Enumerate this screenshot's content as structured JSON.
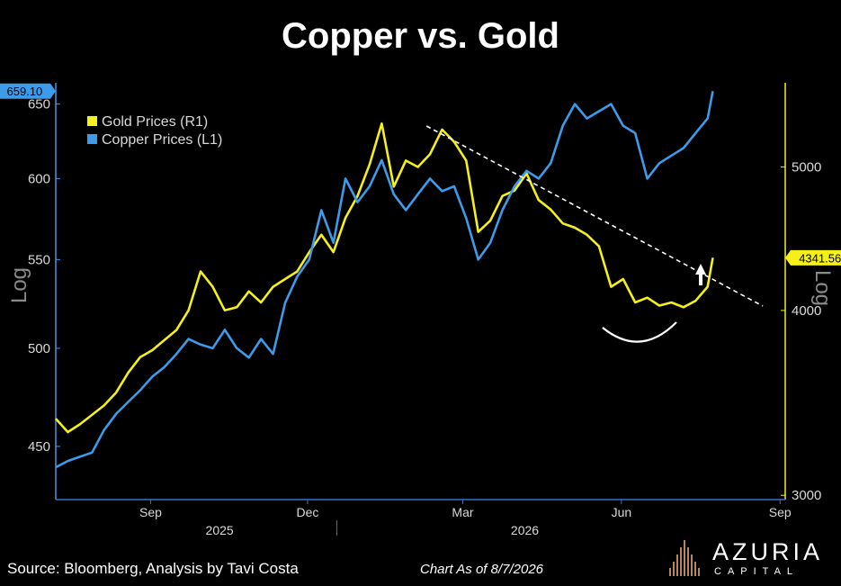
{
  "chart_data": {
    "type": "line",
    "title": "Copper vs. Gold",
    "axes": {
      "left": {
        "label": "Log",
        "scale": "log",
        "range": [
          425,
          665
        ],
        "ticks": [
          "450",
          "500",
          "550",
          "600",
          "650"
        ],
        "current_value_label": "659.10"
      },
      "right": {
        "label": "Log",
        "scale": "log",
        "range": [
          2980,
          5700
        ],
        "ticks": [
          "3000",
          "4000",
          "5000"
        ],
        "current_value_label": "4341.56"
      },
      "x": {
        "type": "date",
        "range": [
          "2025-07-22",
          "2026-09-18"
        ],
        "month_ticks": [
          "Sep",
          "Dec",
          "Mar",
          "Jun",
          "Sep"
        ],
        "year_labels": [
          "2025",
          "2026"
        ]
      }
    },
    "legend": {
      "position": "top-left",
      "entries": [
        "Gold Prices (R1)",
        "Copper Prices (L1)"
      ]
    },
    "series": [
      {
        "name": "Gold Prices (R1)",
        "axis": "right",
        "color": "#f5ef1a",
        "points": [
          [
            "2025-07-22",
            3380
          ],
          [
            "2025-07-29",
            3310
          ],
          [
            "2025-08-05",
            3350
          ],
          [
            "2025-08-12",
            3400
          ],
          [
            "2025-08-19",
            3450
          ],
          [
            "2025-08-26",
            3520
          ],
          [
            "2025-09-02",
            3630
          ],
          [
            "2025-09-09",
            3720
          ],
          [
            "2025-09-16",
            3760
          ],
          [
            "2025-09-23",
            3820
          ],
          [
            "2025-09-30",
            3880
          ],
          [
            "2025-10-07",
            4000
          ],
          [
            "2025-10-14",
            4250
          ],
          [
            "2025-10-21",
            4150
          ],
          [
            "2025-10-28",
            4000
          ],
          [
            "2025-11-04",
            4020
          ],
          [
            "2025-11-11",
            4120
          ],
          [
            "2025-11-18",
            4050
          ],
          [
            "2025-11-25",
            4150
          ],
          [
            "2025-12-02",
            4200
          ],
          [
            "2025-12-09",
            4250
          ],
          [
            "2025-12-16",
            4380
          ],
          [
            "2025-12-23",
            4500
          ],
          [
            "2025-12-30",
            4380
          ],
          [
            "2026-01-06",
            4620
          ],
          [
            "2026-01-13",
            4780
          ],
          [
            "2026-01-20",
            5020
          ],
          [
            "2026-01-27",
            5350
          ],
          [
            "2026-02-03",
            4850
          ],
          [
            "2026-02-10",
            5050
          ],
          [
            "2026-02-17",
            5000
          ],
          [
            "2026-02-24",
            5100
          ],
          [
            "2026-03-03",
            5300
          ],
          [
            "2026-03-10",
            5200
          ],
          [
            "2026-03-17",
            5050
          ],
          [
            "2026-03-24",
            4520
          ],
          [
            "2026-03-31",
            4600
          ],
          [
            "2026-04-07",
            4780
          ],
          [
            "2026-04-14",
            4820
          ],
          [
            "2026-04-21",
            4950
          ],
          [
            "2026-04-28",
            4750
          ],
          [
            "2026-05-05",
            4680
          ],
          [
            "2026-05-12",
            4580
          ],
          [
            "2026-05-19",
            4550
          ],
          [
            "2026-05-26",
            4500
          ],
          [
            "2026-06-02",
            4420
          ],
          [
            "2026-06-09",
            4150
          ],
          [
            "2026-06-16",
            4200
          ],
          [
            "2026-06-23",
            4050
          ],
          [
            "2026-06-30",
            4080
          ],
          [
            "2026-07-07",
            4030
          ],
          [
            "2026-07-14",
            4050
          ],
          [
            "2026-07-21",
            4020
          ],
          [
            "2026-07-28",
            4060
          ],
          [
            "2026-08-04",
            4150
          ],
          [
            "2026-08-07",
            4341.56
          ]
        ]
      },
      {
        "name": "Copper Prices (L1)",
        "axis": "left",
        "color": "#3d9be9",
        "points": [
          [
            "2025-07-22",
            440
          ],
          [
            "2025-07-29",
            443
          ],
          [
            "2025-08-05",
            445
          ],
          [
            "2025-08-12",
            447
          ],
          [
            "2025-08-19",
            458
          ],
          [
            "2025-08-26",
            466
          ],
          [
            "2025-09-02",
            472
          ],
          [
            "2025-09-09",
            478
          ],
          [
            "2025-09-16",
            485
          ],
          [
            "2025-09-23",
            490
          ],
          [
            "2025-09-30",
            497
          ],
          [
            "2025-10-07",
            505
          ],
          [
            "2025-10-14",
            502
          ],
          [
            "2025-10-21",
            500
          ],
          [
            "2025-10-28",
            510
          ],
          [
            "2025-11-04",
            500
          ],
          [
            "2025-11-11",
            495
          ],
          [
            "2025-11-18",
            505
          ],
          [
            "2025-11-25",
            497
          ],
          [
            "2025-12-02",
            525
          ],
          [
            "2025-12-09",
            540
          ],
          [
            "2025-12-16",
            550
          ],
          [
            "2025-12-23",
            580
          ],
          [
            "2025-12-30",
            560
          ],
          [
            "2026-01-06",
            600
          ],
          [
            "2026-01-13",
            585
          ],
          [
            "2026-01-20",
            595
          ],
          [
            "2026-01-27",
            612
          ],
          [
            "2026-02-03",
            590
          ],
          [
            "2026-02-10",
            580
          ],
          [
            "2026-02-17",
            590
          ],
          [
            "2026-02-24",
            600
          ],
          [
            "2026-03-03",
            592
          ],
          [
            "2026-03-10",
            595
          ],
          [
            "2026-03-17",
            575
          ],
          [
            "2026-03-24",
            550
          ],
          [
            "2026-03-31",
            560
          ],
          [
            "2026-04-07",
            580
          ],
          [
            "2026-04-14",
            595
          ],
          [
            "2026-04-21",
            605
          ],
          [
            "2026-04-28",
            600
          ],
          [
            "2026-05-05",
            610
          ],
          [
            "2026-05-12",
            635
          ],
          [
            "2026-05-19",
            650
          ],
          [
            "2026-05-26",
            640
          ],
          [
            "2026-06-02",
            645
          ],
          [
            "2026-06-09",
            650
          ],
          [
            "2026-06-16",
            635
          ],
          [
            "2026-06-23",
            630
          ],
          [
            "2026-06-30",
            600
          ],
          [
            "2026-07-07",
            610
          ],
          [
            "2026-07-14",
            615
          ],
          [
            "2026-07-21",
            620
          ],
          [
            "2026-07-28",
            630
          ],
          [
            "2026-08-04",
            640
          ],
          [
            "2026-08-07",
            659.1
          ]
        ]
      }
    ]
  },
  "footer": {
    "source": "Source: Bloomberg, Analysis by Tavi Costa",
    "as_of": "Chart As of 8/7/2026",
    "brand_name": "AZURIA",
    "brand_sub": "CAPITAL"
  },
  "colors": {
    "background": "#000000",
    "gold": "#f5ef1a",
    "copper": "#3d9be9",
    "text": "#ffffff",
    "axis_text": "#d8d8d8"
  }
}
